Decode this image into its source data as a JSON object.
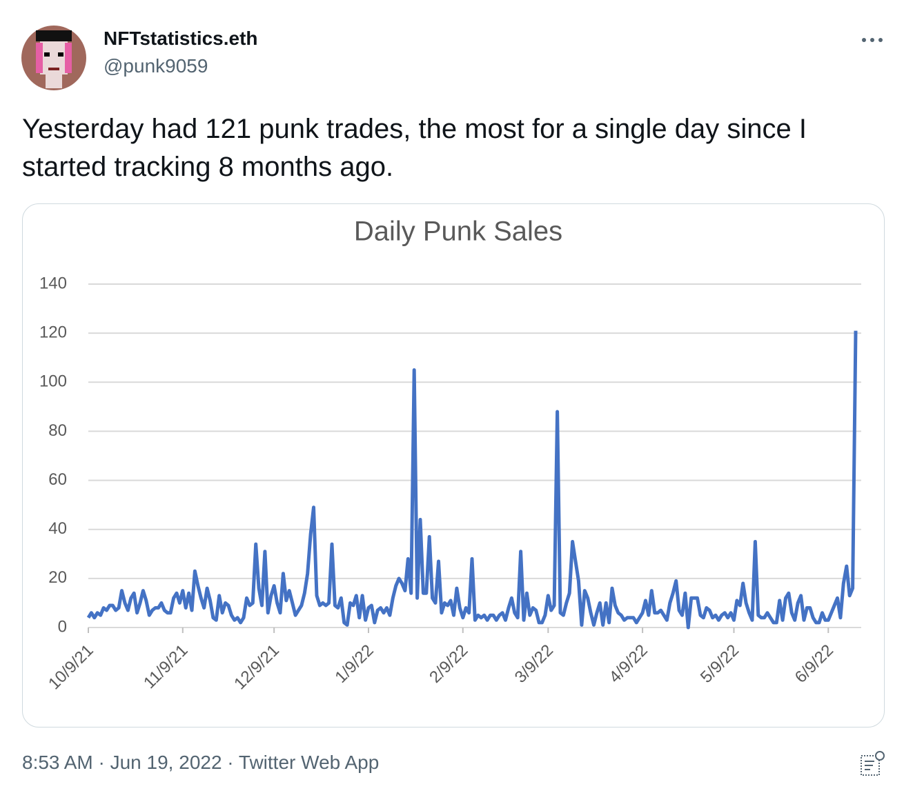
{
  "tweet": {
    "name": "NFTstatistics.eth",
    "handle": "@punk9059",
    "text": "Yesterday had 121 punk trades, the most for a single day since I started tracking 8 months ago.",
    "footer": "8:53 AM · Jun 19, 2022 · Twitter Web App"
  },
  "chart_data": {
    "type": "line",
    "title": "Daily Punk Sales",
    "color": "#4472c4",
    "grid": true,
    "ylim": [
      0,
      140
    ],
    "yticks": [
      0,
      20,
      40,
      60,
      80,
      100,
      120,
      140
    ],
    "xlim": [
      "10/9/21",
      "6/18/22"
    ],
    "xticks": [
      "10/9/21",
      "11/9/21",
      "12/9/21",
      "1/9/22",
      "2/9/22",
      "3/9/22",
      "4/9/22",
      "5/9/22",
      "6/9/22"
    ],
    "x": [
      "10/9/21",
      "10/10/21",
      "10/11/21",
      "10/12/21",
      "10/13/21",
      "10/14/21",
      "10/15/21",
      "10/16/21",
      "10/17/21",
      "10/18/21",
      "10/19/21",
      "10/20/21",
      "10/21/21",
      "10/22/21",
      "10/23/21",
      "10/24/21",
      "10/25/21",
      "10/26/21",
      "10/27/21",
      "10/28/21",
      "10/29/21",
      "10/30/21",
      "10/31/21",
      "11/1/21",
      "11/2/21",
      "11/3/21",
      "11/4/21",
      "11/5/21",
      "11/6/21",
      "11/7/21",
      "11/8/21",
      "11/9/21",
      "11/10/21",
      "11/11/21",
      "11/12/21",
      "11/13/21",
      "11/14/21",
      "11/15/21",
      "11/16/21",
      "11/17/21",
      "11/18/21",
      "11/19/21",
      "11/20/21",
      "11/21/21",
      "11/22/21",
      "11/23/21",
      "11/24/21",
      "11/25/21",
      "11/26/21",
      "11/27/21",
      "11/28/21",
      "11/29/21",
      "11/30/21",
      "12/1/21",
      "12/2/21",
      "12/3/21",
      "12/4/21",
      "12/5/21",
      "12/6/21",
      "12/7/21",
      "12/8/21",
      "12/9/21",
      "12/10/21",
      "12/11/21",
      "12/12/21",
      "12/13/21",
      "12/14/21",
      "12/15/21",
      "12/16/21",
      "12/17/21",
      "12/18/21",
      "12/19/21",
      "12/20/21",
      "12/21/21",
      "12/22/21",
      "12/23/21",
      "12/24/21",
      "12/25/21",
      "12/26/21",
      "12/27/21",
      "12/28/21",
      "12/29/21",
      "12/30/21",
      "12/31/21",
      "1/1/22",
      "1/2/22",
      "1/3/22",
      "1/4/22",
      "1/5/22",
      "1/6/22",
      "1/7/22",
      "1/8/22",
      "1/9/22",
      "1/10/22",
      "1/11/22",
      "1/12/22",
      "1/13/22",
      "1/14/22",
      "1/15/22",
      "1/16/22",
      "1/17/22",
      "1/18/22",
      "1/19/22",
      "1/20/22",
      "1/21/22",
      "1/22/22",
      "1/23/22",
      "1/24/22",
      "1/25/22",
      "1/26/22",
      "1/27/22",
      "1/28/22",
      "1/29/22",
      "1/30/22",
      "1/31/22",
      "2/1/22",
      "2/2/22",
      "2/3/22",
      "2/4/22",
      "2/5/22",
      "2/6/22",
      "2/7/22",
      "2/8/22",
      "2/9/22",
      "2/10/22",
      "2/11/22",
      "2/12/22",
      "2/13/22",
      "2/14/22",
      "2/15/22",
      "2/16/22",
      "2/17/22",
      "2/18/22",
      "2/19/22",
      "2/20/22",
      "2/21/22",
      "2/22/22",
      "2/23/22",
      "2/24/22",
      "2/25/22",
      "2/26/22",
      "2/27/22",
      "2/28/22",
      "3/1/22",
      "3/2/22",
      "3/3/22",
      "3/4/22",
      "3/5/22",
      "3/6/22",
      "3/7/22",
      "3/8/22",
      "3/9/22",
      "3/10/22",
      "3/11/22",
      "3/12/22",
      "3/13/22",
      "3/14/22",
      "3/15/22",
      "3/16/22",
      "3/17/22",
      "3/18/22",
      "3/19/22",
      "3/20/22",
      "3/21/22",
      "3/22/22",
      "3/23/22",
      "3/24/22",
      "3/25/22",
      "3/26/22",
      "3/27/22",
      "3/28/22",
      "3/29/22",
      "3/30/22",
      "3/31/22",
      "4/1/22",
      "4/2/22",
      "4/3/22",
      "4/4/22",
      "4/5/22",
      "4/6/22",
      "4/7/22",
      "4/8/22",
      "4/9/22",
      "4/10/22",
      "4/11/22",
      "4/12/22",
      "4/13/22",
      "4/14/22",
      "4/15/22",
      "4/16/22",
      "4/17/22",
      "4/18/22",
      "4/19/22",
      "4/20/22",
      "4/21/22",
      "4/22/22",
      "4/23/22",
      "4/24/22",
      "4/25/22",
      "4/26/22",
      "4/27/22",
      "4/28/22",
      "4/29/22",
      "4/30/22",
      "5/1/22",
      "5/2/22",
      "5/3/22",
      "5/4/22",
      "5/5/22",
      "5/6/22",
      "5/7/22",
      "5/8/22",
      "5/9/22",
      "5/10/22",
      "5/11/22",
      "5/12/22",
      "5/13/22",
      "5/14/22",
      "5/15/22",
      "5/16/22",
      "5/17/22",
      "5/18/22",
      "5/19/22",
      "5/20/22",
      "5/21/22",
      "5/22/22",
      "5/23/22",
      "5/24/22",
      "5/25/22",
      "5/26/22",
      "5/27/22",
      "5/28/22",
      "5/29/22",
      "5/30/22",
      "5/31/22",
      "6/1/22",
      "6/2/22",
      "6/3/22",
      "6/4/22",
      "6/5/22",
      "6/6/22",
      "6/7/22",
      "6/8/22",
      "6/9/22",
      "6/10/22",
      "6/11/22",
      "6/12/22",
      "6/13/22",
      "6/14/22",
      "6/15/22",
      "6/16/22",
      "6/17/22",
      "6/18/22"
    ],
    "values": [
      4,
      6,
      4,
      6,
      5,
      8,
      7,
      9,
      9,
      7,
      8,
      15,
      10,
      7,
      12,
      14,
      6,
      10,
      15,
      11,
      5,
      7,
      8,
      8,
      10,
      7,
      6,
      6,
      12,
      14,
      10,
      15,
      8,
      14,
      7,
      23,
      17,
      12,
      8,
      16,
      11,
      4,
      3,
      13,
      6,
      10,
      9,
      5,
      3,
      4,
      2,
      4,
      12,
      9,
      10,
      34,
      16,
      9,
      31,
      6,
      13,
      17,
      10,
      6,
      22,
      11,
      15,
      10,
      5,
      7,
      9,
      14,
      22,
      38,
      49,
      13,
      9,
      10,
      9,
      10,
      34,
      9,
      8,
      12,
      2,
      1,
      10,
      9,
      13,
      4,
      13,
      3,
      8,
      9,
      2,
      7,
      8,
      6,
      8,
      5,
      12,
      17,
      20,
      18,
      15,
      28,
      14,
      105,
      12,
      44,
      14,
      14,
      37,
      12,
      10,
      27,
      6,
      10,
      9,
      11,
      5,
      16,
      8,
      4,
      8,
      6,
      28,
      3,
      5,
      4,
      5,
      3,
      5,
      5,
      3,
      5,
      6,
      3,
      8,
      12,
      6,
      4,
      31,
      3,
      14,
      5,
      8,
      7,
      2,
      2,
      5,
      13,
      7,
      9,
      88,
      6,
      5,
      10,
      14,
      35,
      27,
      19,
      1,
      15,
      12,
      6,
      1,
      6,
      10,
      1,
      10,
      2,
      16,
      9,
      6,
      5,
      3,
      4,
      4,
      4,
      2,
      4,
      6,
      11,
      5,
      15,
      6,
      6,
      7,
      5,
      3,
      10,
      14,
      19,
      7,
      5,
      14,
      0,
      12,
      12,
      12,
      5,
      4,
      8,
      7,
      4,
      5,
      3,
      5,
      6,
      4,
      6,
      3,
      11,
      9,
      18,
      10,
      6,
      3,
      35,
      5,
      4,
      4,
      6,
      4,
      2,
      2,
      11,
      3,
      12,
      14,
      6,
      3,
      10,
      13,
      3,
      8,
      8,
      4,
      2,
      2,
      6,
      3,
      3,
      6,
      9,
      12,
      4,
      18,
      25,
      13,
      16,
      121
    ]
  }
}
